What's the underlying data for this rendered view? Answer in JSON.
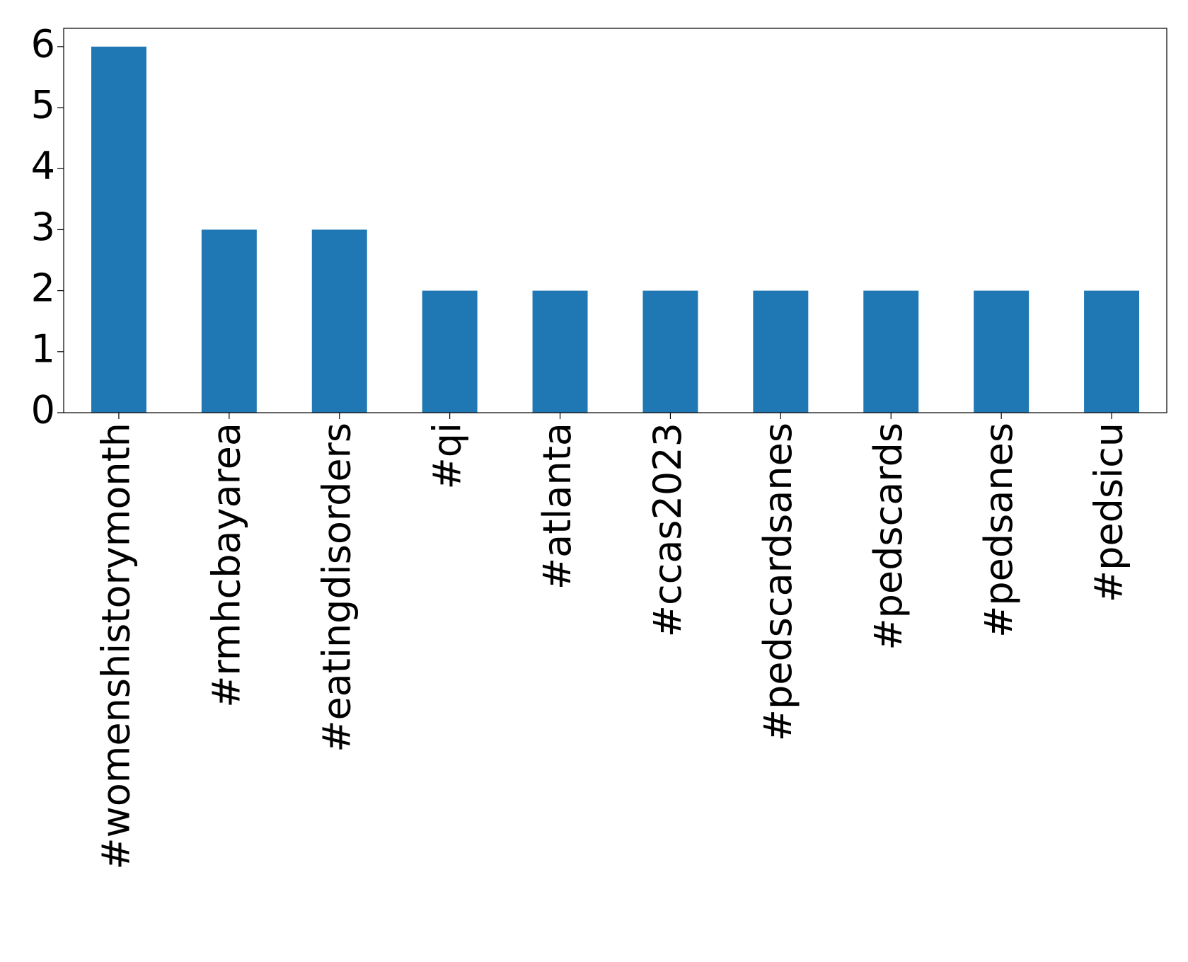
{
  "chart_data": {
    "type": "bar",
    "categories": [
      "#womenshistorymonth",
      "#rmhcbayarea",
      "#eatingdisorders",
      "#qi",
      "#atlanta",
      "#ccas2023",
      "#pedscardsanes",
      "#pedscards",
      "#pedsanes",
      "#pedsicu"
    ],
    "values": [
      6,
      3,
      3,
      2,
      2,
      2,
      2,
      2,
      2,
      2
    ],
    "color": "#1f77b4",
    "ylim": [
      0,
      6.3
    ],
    "yticks": [
      0,
      1,
      2,
      3,
      4,
      5,
      6
    ],
    "grid": false
  }
}
